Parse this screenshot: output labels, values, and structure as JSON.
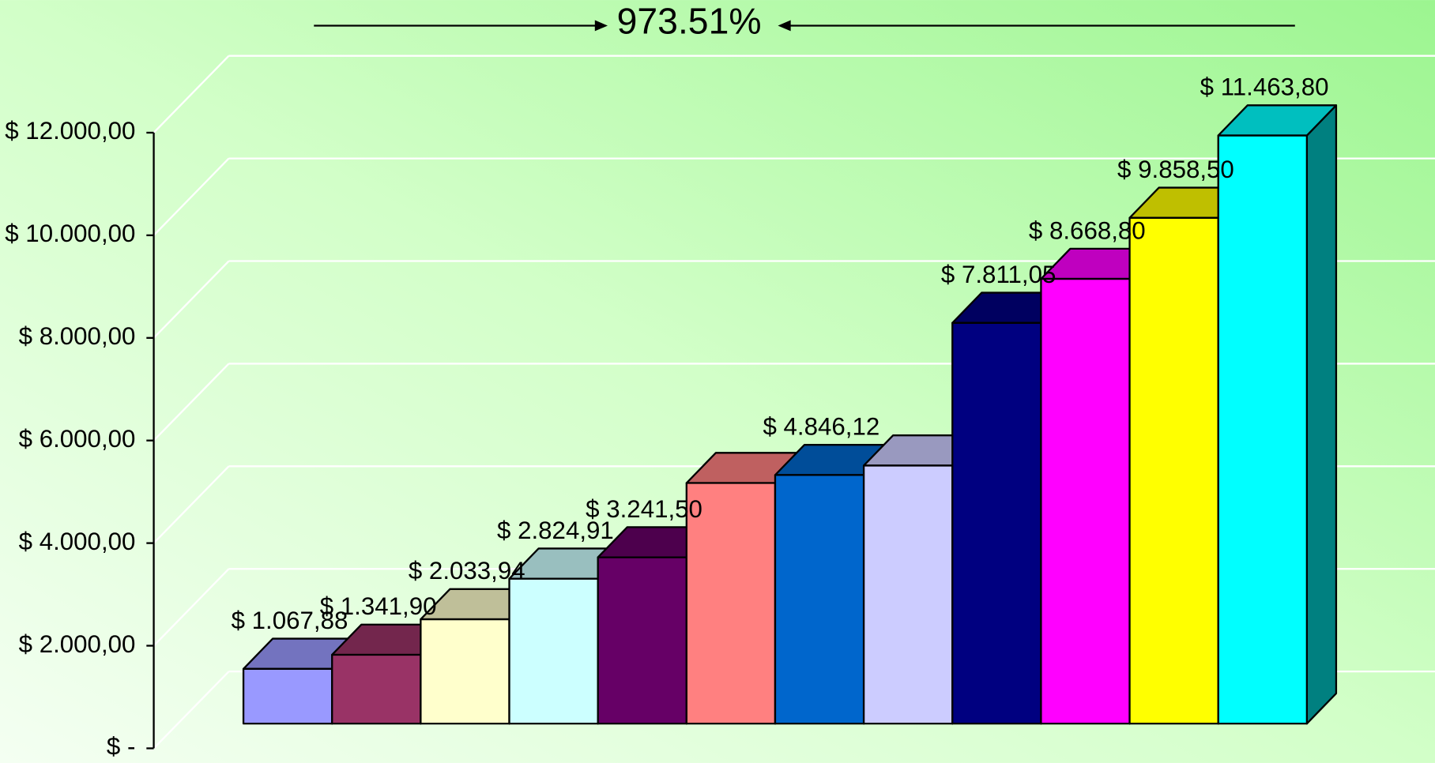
{
  "chart_data": {
    "type": "bar3d",
    "title": "973.51%",
    "values": [
      1067.88,
      1341.9,
      2033.94,
      2824.91,
      3241.5,
      4690,
      4846.12,
      5030,
      7811.05,
      8668.8,
      9858.5,
      11463.8
    ],
    "value_labels": [
      "$ 1.067,88",
      "$ 1.341,90",
      "$ 2.033,94",
      "$ 2.824,91",
      "$ 3.241,50",
      null,
      "$ 4.846,12",
      null,
      "$ 7.811,05",
      "$ 8.668,80",
      "$ 9.858,50",
      "$ 11.463,80"
    ],
    "colors": [
      "#9999ff",
      "#993366",
      "#ffffcc",
      "#ccffff",
      "#660066",
      "#ff8080",
      "#0066cc",
      "#ccccff",
      "#000080",
      "#ff00ff",
      "#ffff00",
      "#00ffff"
    ],
    "ylim": [
      0,
      12000
    ],
    "yticks": [
      {
        "value": 0,
        "label": "$ -"
      },
      {
        "value": 2000,
        "label": "$ 2.000,00"
      },
      {
        "value": 4000,
        "label": "$ 4.000,00"
      },
      {
        "value": 6000,
        "label": "$ 6.000,00"
      },
      {
        "value": 8000,
        "label": "$ 8.000,00"
      },
      {
        "value": 10000,
        "label": "$ 10.000,00"
      },
      {
        "value": 12000,
        "label": "$ 12.000,00"
      }
    ],
    "grid": true
  }
}
